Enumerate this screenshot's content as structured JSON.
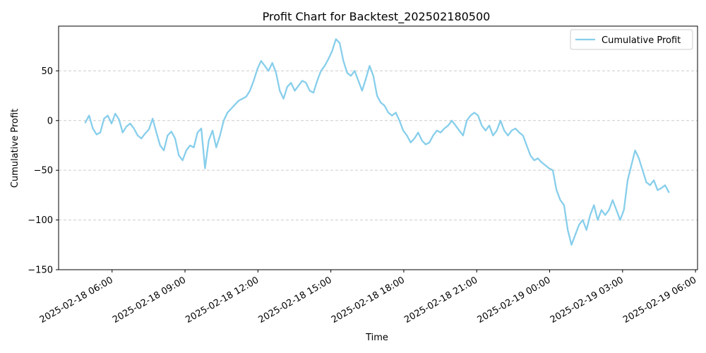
{
  "chart_data": {
    "type": "line",
    "title": "Profit Chart for Backtest_202502180500",
    "xlabel": "Time",
    "ylabel": "Cumulative Profit",
    "x_start": "2025-02-18 04:54",
    "x_end": "2025-02-19 04:54",
    "xlim": [
      "2025-02-18 03:48",
      "2025-02-19 06:05"
    ],
    "ylim": [
      -150,
      95
    ],
    "x_ticks": [
      "2025-02-18 06:00",
      "2025-02-18 09:00",
      "2025-02-18 12:00",
      "2025-02-18 15:00",
      "2025-02-18 18:00",
      "2025-02-18 21:00",
      "2025-02-19 00:00",
      "2025-02-19 03:00",
      "2025-02-19 06:00"
    ],
    "y_ticks": [
      -150,
      -100,
      -50,
      0,
      50
    ],
    "y_tick_labels": [
      "−150",
      "−100",
      "−50",
      "0",
      "50"
    ],
    "grid": "y-dashed",
    "legend_position": "top-right",
    "series": [
      {
        "name": "Cumulative Profit",
        "color": "#87CEEB",
        "values": [
          -2,
          5,
          -8,
          -14,
          -12,
          2,
          5,
          -3,
          7,
          1,
          -12,
          -6,
          -3,
          -8,
          -15,
          -18,
          -13,
          -9,
          2,
          -12,
          -25,
          -30,
          -15,
          -11,
          -18,
          -35,
          -40,
          -30,
          -25,
          -27,
          -12,
          -8,
          -48,
          -20,
          -10,
          -27,
          -15,
          0,
          8,
          12,
          16,
          20,
          22,
          24,
          30,
          40,
          52,
          60,
          55,
          50,
          58,
          48,
          30,
          22,
          34,
          38,
          30,
          35,
          40,
          38,
          30,
          28,
          40,
          50,
          55,
          62,
          70,
          82,
          78,
          60,
          48,
          45,
          50,
          40,
          30,
          42,
          55,
          45,
          25,
          18,
          15,
          8,
          5,
          8,
          0,
          -10,
          -15,
          -22,
          -18,
          -12,
          -20,
          -24,
          -22,
          -15,
          -10,
          -12,
          -8,
          -5,
          0,
          -5,
          -10,
          -15,
          0,
          5,
          8,
          5,
          -5,
          -10,
          -5,
          -15,
          -10,
          0,
          -10,
          -15,
          -10,
          -8,
          -12,
          -15,
          -25,
          -35,
          -40,
          -38,
          -42,
          -45,
          -48,
          -50,
          -70,
          -80,
          -85,
          -110,
          -125,
          -115,
          -105,
          -100,
          -110,
          -95,
          -85,
          -100,
          -90,
          -95,
          -90,
          -80,
          -90,
          -100,
          -90,
          -60,
          -45,
          -30,
          -38,
          -50,
          -62,
          -65,
          -60,
          -70,
          -68,
          -65,
          -72
        ]
      }
    ]
  }
}
